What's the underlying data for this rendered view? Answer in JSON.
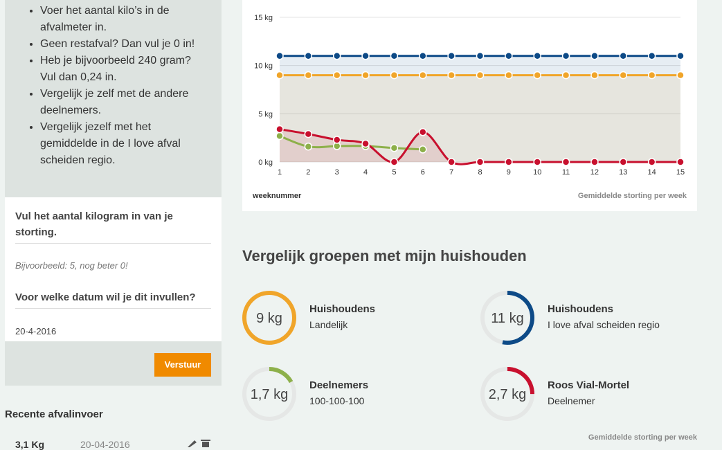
{
  "instructions": [
    "Voer het aantal kilo’s in de afvalmeter in.",
    "Geen restafval? Dan vul je 0 in!",
    "Heb je bijvoorbeeld 240 gram? Vul dan 0,24 in.",
    "Vergelijk je zelf met de andere deelnemers.",
    "Vergelijk jezelf met het gemiddelde in de I love afval scheiden regio."
  ],
  "form": {
    "kg_label": "Vul het aantal kilogram in van je storting.",
    "kg_placeholder": "Bijvoorbeeld: 5, nog beter 0!",
    "date_label": "Voor welke datum wil je dit invullen?",
    "date_value": "20-4-2016",
    "submit": "Verstuur"
  },
  "recent": {
    "title": "Recente afvalinvoer",
    "rows": [
      {
        "amount": "3,1 Kg",
        "date": "20-04-2016"
      }
    ]
  },
  "chart_data": {
    "type": "line",
    "x": [
      1,
      2,
      3,
      4,
      5,
      6,
      7,
      8,
      9,
      10,
      11,
      12,
      13,
      14,
      15
    ],
    "xlim": [
      1,
      15
    ],
    "xticks": [
      1,
      2,
      3,
      4,
      5,
      6,
      7,
      8,
      9,
      10,
      11,
      12,
      13,
      14,
      15
    ],
    "ylim": [
      0,
      15
    ],
    "yticks": [
      {
        "value": 0,
        "label": "0 kg"
      },
      {
        "value": 5,
        "label": "5 kg"
      },
      {
        "value": 10,
        "label": "10 kg"
      },
      {
        "value": 15,
        "label": "15 kg"
      }
    ],
    "grid": true,
    "smooth": true,
    "series": [
      {
        "color": "#0d4a87",
        "area": true,
        "values": [
          11,
          11,
          11,
          11,
          11,
          11,
          11,
          11,
          11,
          11,
          11,
          11,
          11,
          11,
          11
        ]
      },
      {
        "color": "#f0a52a",
        "area": true,
        "values": [
          9,
          9,
          9,
          9,
          9,
          9,
          9,
          9,
          9,
          9,
          9,
          9,
          9,
          9,
          9
        ]
      },
      {
        "color": "#8db04a",
        "area": false,
        "values": [
          2.7,
          1.6,
          1.65,
          1.65,
          1.45,
          1.3,
          null,
          null,
          null,
          null,
          null,
          null,
          null,
          null,
          null
        ]
      },
      {
        "color": "#c8102e",
        "area": true,
        "values": [
          3.4,
          2.9,
          2.3,
          1.9,
          0,
          3.1,
          0,
          0,
          0,
          0,
          0,
          0,
          0,
          0,
          0
        ]
      }
    ],
    "x_label": "weeknummer",
    "note": "Gemiddelde storting per week"
  },
  "compare": {
    "title": "Vergelijk groepen met mijn huishouden",
    "groups": [
      {
        "name": "Huishoudens",
        "sub": "Landelijk",
        "label": "9 kg",
        "color": "#f0a52a",
        "fraction": 1
      },
      {
        "name": "Huishoudens",
        "sub": "I love afval scheiden regio",
        "label": "11 kg",
        "color": "#0d4a87",
        "fraction": 0.53
      },
      {
        "name": "Deelnemers",
        "sub": "100-100-100",
        "label": "1,7 kg",
        "color": "#8db04a",
        "fraction": 0.17
      },
      {
        "name": "Roos Vial-Mortel",
        "sub": "Deelnemer",
        "label": "2,7 kg",
        "color": "#c8102e",
        "fraction": 0.25
      }
    ],
    "note": "Gemiddelde storting per week"
  }
}
